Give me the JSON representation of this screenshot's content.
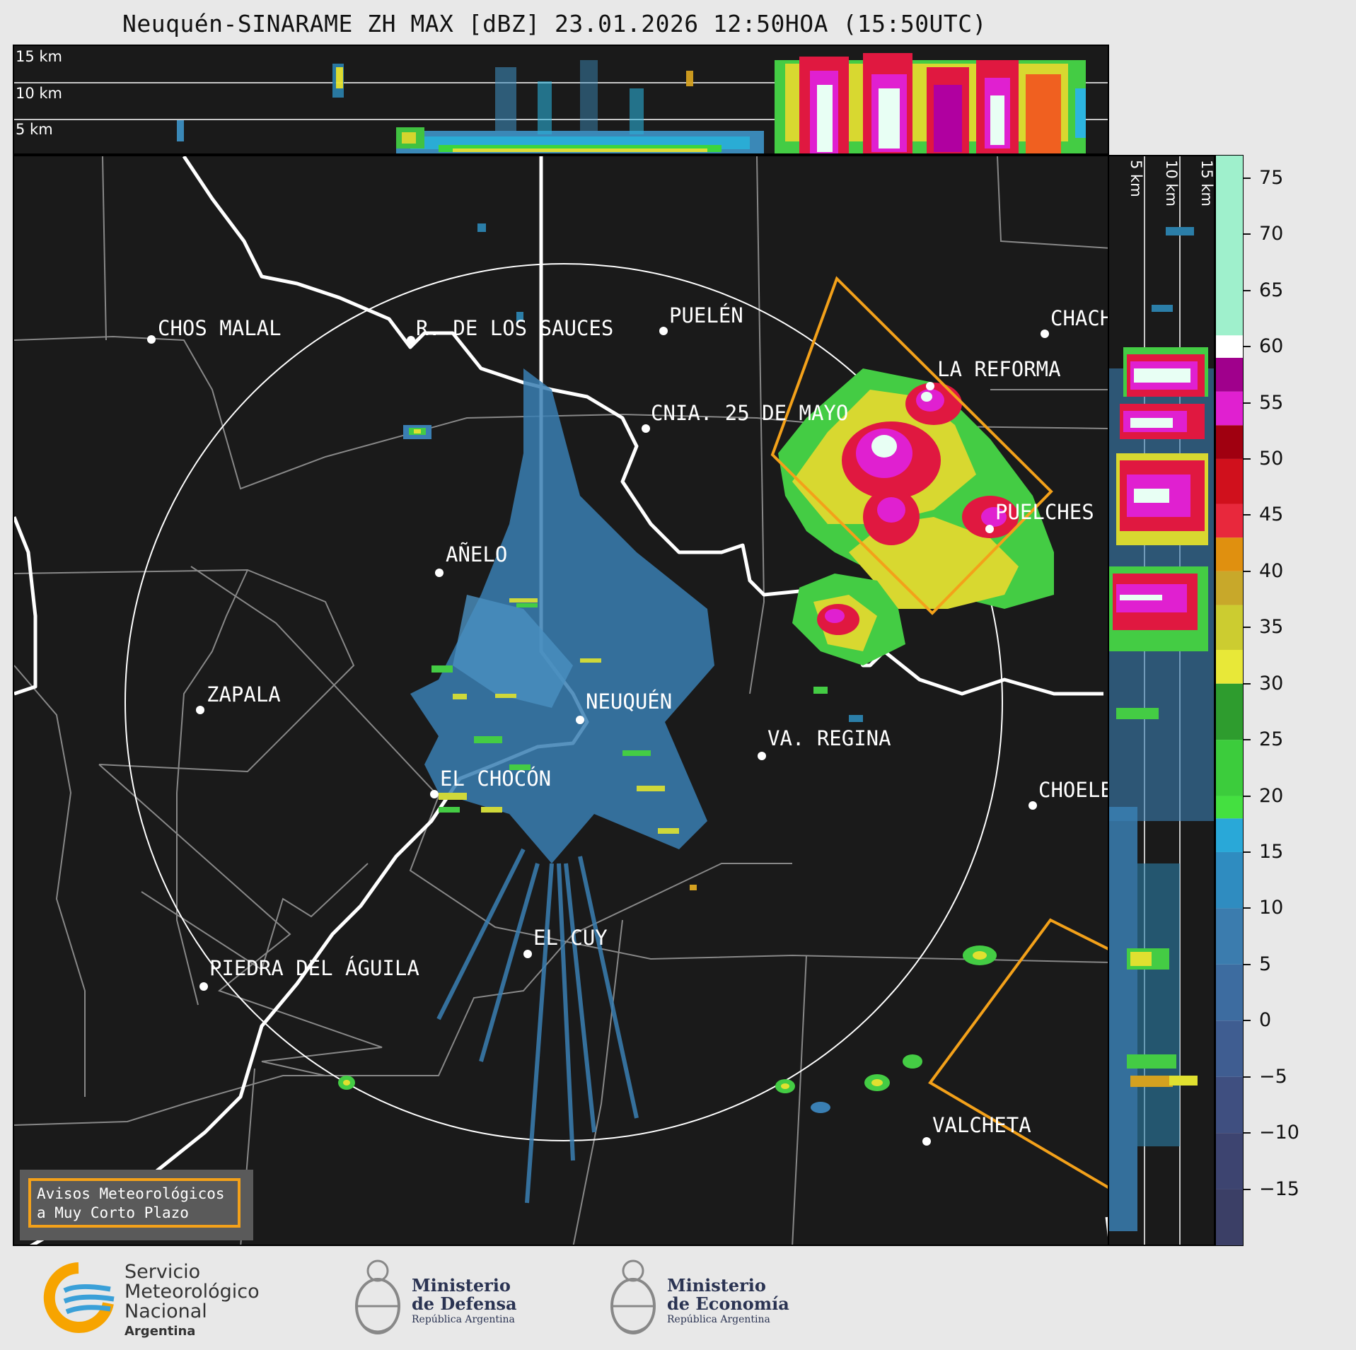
{
  "title": "Neuquén-SINARAME ZH MAX [dBZ] 23.01.2026 12:50HOA (15:50UTC)",
  "top_panel": {
    "alt_labels": [
      "15 km",
      "10 km",
      "5 km"
    ]
  },
  "side_panel": {
    "alt_labels": [
      "5 km",
      "10 km",
      "15 km"
    ]
  },
  "places": {
    "chos_malal": "CHOS MALAL",
    "rincon": "R. DE LOS SAUCES",
    "puelen": "PUELÉN",
    "chach": "CHACH",
    "la_reforma": "LA REFORMA",
    "cnia": "CNIA. 25 DE MAYO",
    "puelches": "PUELCHES",
    "anelo": "AÑELO",
    "zapala": "ZAPALA",
    "neuquen": "NEUQUÉN",
    "regina": "VA. REGINA",
    "chocon": "EL CHOCÓN",
    "choele": "CHOELE",
    "el_cuy": "EL CUY",
    "piedra": "PIEDRA DEL ÁGUILA",
    "valcheta": "VALCHETA"
  },
  "colorbar": {
    "ticks": [
      "75",
      "70",
      "65",
      "60",
      "55",
      "50",
      "45",
      "40",
      "35",
      "30",
      "25",
      "20",
      "15",
      "10",
      "5",
      "0",
      "−5",
      "−10",
      "−15"
    ],
    "range_dbz": [
      -20,
      77
    ]
  },
  "avisos": {
    "line1": "Avisos Meteorológicos",
    "line2": "a Muy Corto Plazo"
  },
  "logos": {
    "smn": {
      "line1": "Servicio",
      "line2": "Meteorológico",
      "line3": "Nacional",
      "line4": "Argentina"
    },
    "defensa": {
      "line1": "Ministerio",
      "line2": "de Defensa",
      "line3": "República Argentina"
    },
    "economia": {
      "line1": "Ministerio",
      "line2": "de Economía",
      "line3": "República Argentina"
    }
  },
  "colors": {
    "warning_box": "#f3a11a",
    "background": "#1a1a1a"
  }
}
